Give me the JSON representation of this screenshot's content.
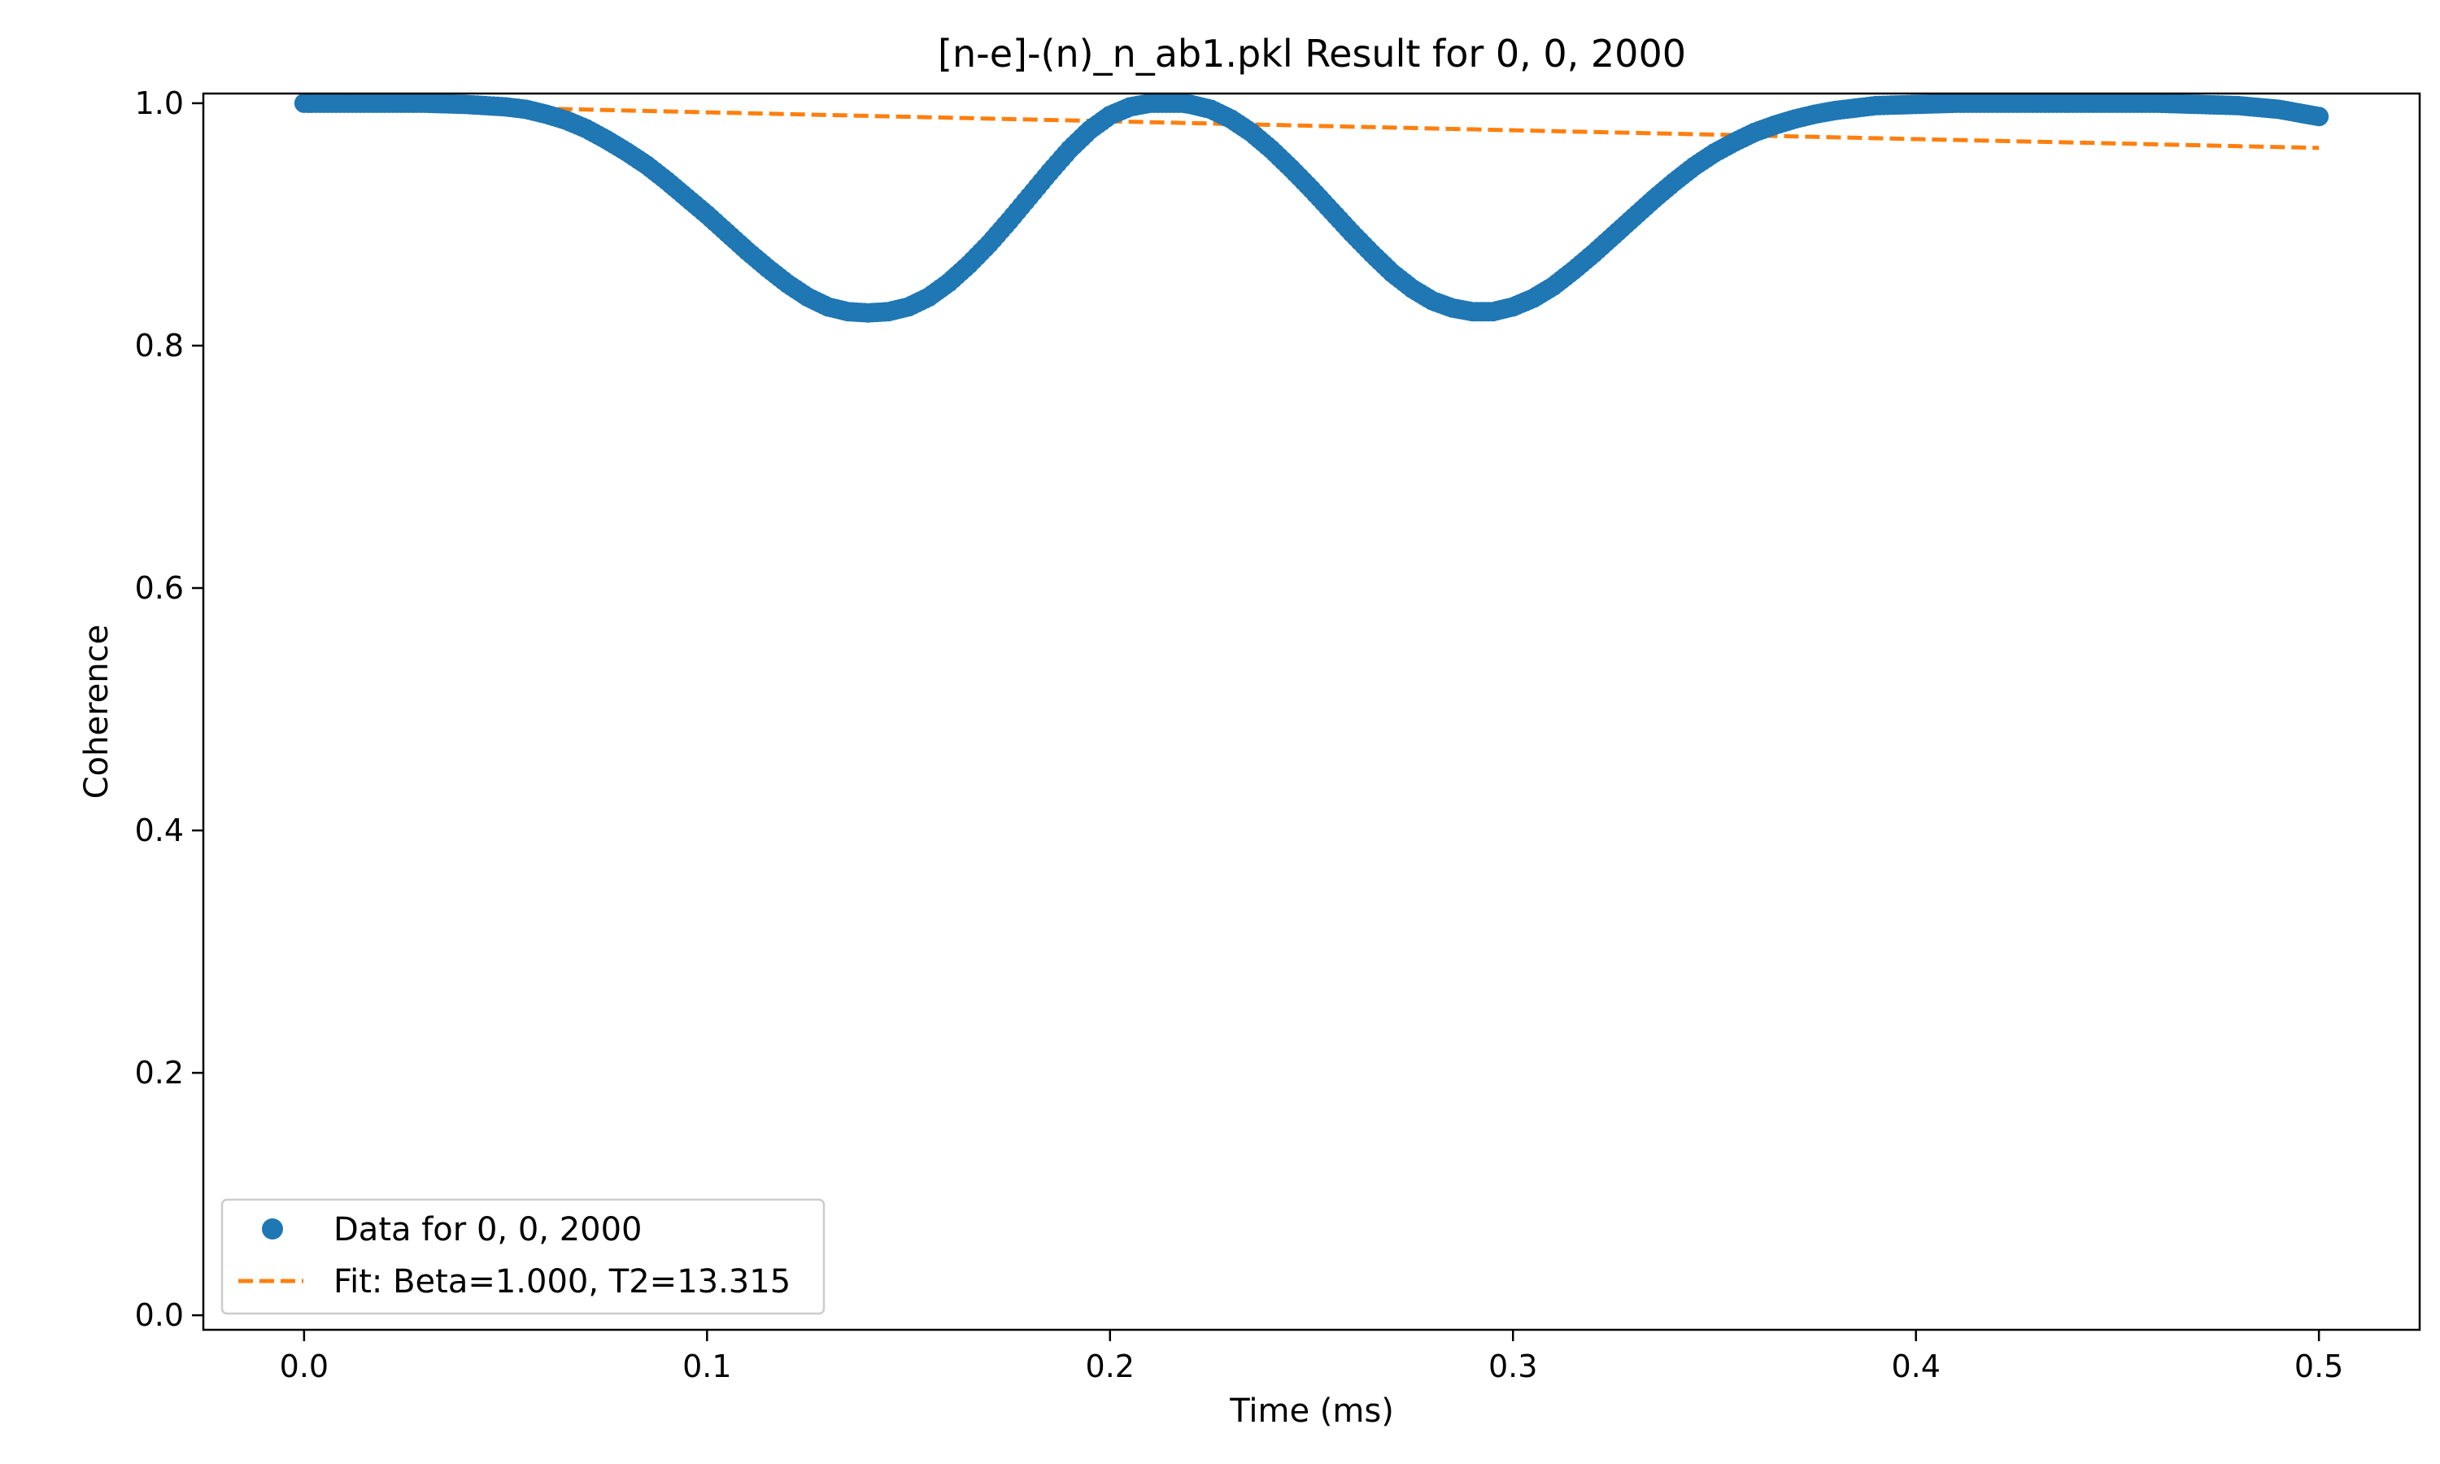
{
  "chart_data": {
    "type": "scatter",
    "title": "[n-e]-(n)_n_ab1.pkl Result for 0, 0, 2000",
    "xlabel": "Time (ms)",
    "ylabel": "Coherence",
    "xlim": [
      -0.025,
      0.525
    ],
    "ylim": [
      -0.012,
      1.008
    ],
    "xticks": [
      0.0,
      0.1,
      0.2,
      0.3,
      0.4,
      0.5
    ],
    "xtick_labels": [
      "0.0",
      "0.1",
      "0.2",
      "0.3",
      "0.4",
      "0.5"
    ],
    "yticks": [
      0.0,
      0.2,
      0.4,
      0.6,
      0.8,
      1.0
    ],
    "ytick_labels": [
      "0.0",
      "0.2",
      "0.4",
      "0.6",
      "0.8",
      "1.0"
    ],
    "grid": false,
    "legend_position": "lower-left",
    "series": [
      {
        "name": "Data for 0, 0, 2000",
        "kind": "markers",
        "marker": "circle",
        "color": "#1f77b4",
        "x": [
          0.0,
          0.01,
          0.02,
          0.03,
          0.04,
          0.05,
          0.055,
          0.06,
          0.065,
          0.07,
          0.075,
          0.08,
          0.085,
          0.09,
          0.095,
          0.1,
          0.105,
          0.11,
          0.115,
          0.12,
          0.125,
          0.13,
          0.135,
          0.14,
          0.145,
          0.15,
          0.155,
          0.16,
          0.165,
          0.17,
          0.175,
          0.18,
          0.185,
          0.19,
          0.195,
          0.2,
          0.205,
          0.21,
          0.215,
          0.218,
          0.22,
          0.225,
          0.23,
          0.235,
          0.24,
          0.245,
          0.25,
          0.255,
          0.26,
          0.265,
          0.27,
          0.275,
          0.28,
          0.285,
          0.29,
          0.295,
          0.3,
          0.305,
          0.31,
          0.315,
          0.32,
          0.325,
          0.33,
          0.335,
          0.34,
          0.345,
          0.35,
          0.355,
          0.36,
          0.365,
          0.37,
          0.375,
          0.38,
          0.385,
          0.39,
          0.4,
          0.41,
          0.42,
          0.43,
          0.44,
          0.45,
          0.46,
          0.47,
          0.48,
          0.49,
          0.5
        ],
        "y": [
          1.0,
          1.0,
          1.0,
          1.0,
          0.999,
          0.997,
          0.995,
          0.991,
          0.986,
          0.979,
          0.97,
          0.96,
          0.949,
          0.936,
          0.922,
          0.908,
          0.893,
          0.878,
          0.864,
          0.851,
          0.84,
          0.832,
          0.828,
          0.827,
          0.828,
          0.832,
          0.84,
          0.852,
          0.867,
          0.884,
          0.903,
          0.923,
          0.943,
          0.962,
          0.978,
          0.99,
          0.997,
          1.0,
          1.0,
          1.0,
          0.999,
          0.995,
          0.987,
          0.976,
          0.962,
          0.946,
          0.929,
          0.911,
          0.893,
          0.876,
          0.86,
          0.847,
          0.837,
          0.831,
          0.828,
          0.828,
          0.832,
          0.839,
          0.849,
          0.862,
          0.876,
          0.891,
          0.906,
          0.921,
          0.935,
          0.948,
          0.959,
          0.968,
          0.976,
          0.982,
          0.987,
          0.991,
          0.994,
          0.996,
          0.998,
          0.999,
          1.0,
          1.0,
          1.0,
          1.0,
          1.0,
          1.0,
          0.999,
          0.998,
          0.995,
          0.989
        ]
      },
      {
        "name": "Fit: Beta=1.000, T2=13.315",
        "kind": "dashed-line",
        "color": "#ff7f0e",
        "x": [
          0.0,
          0.05,
          0.1,
          0.15,
          0.2,
          0.25,
          0.3,
          0.35,
          0.4,
          0.45,
          0.5
        ],
        "y": [
          1.0,
          0.9963,
          0.9925,
          0.9888,
          0.9851,
          0.9814,
          0.9777,
          0.9741,
          0.9704,
          0.9668,
          0.9631
        ]
      }
    ]
  }
}
